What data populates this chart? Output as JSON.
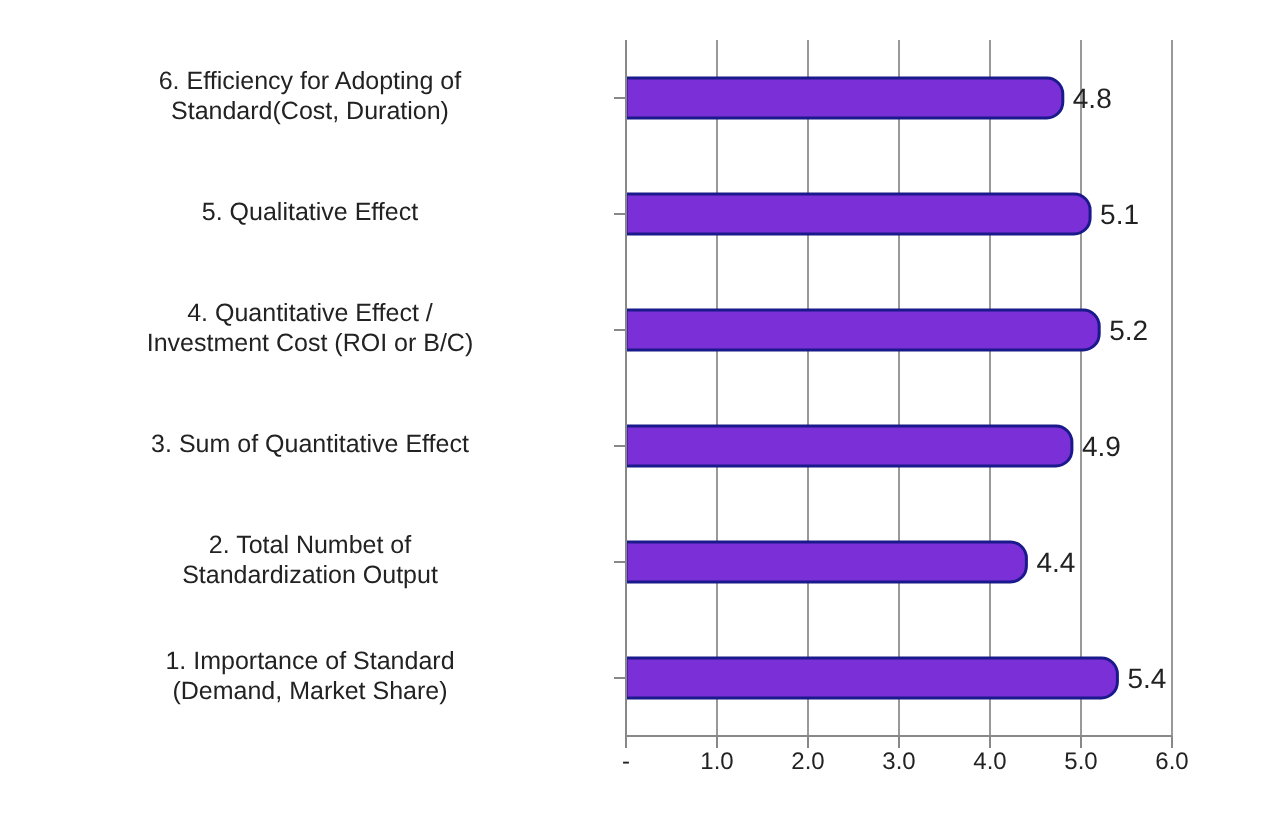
{
  "chart_data": {
    "type": "bar",
    "orientation": "horizontal",
    "categories": [
      "6. Efficiency for Adopting of Standard(Cost, Duration)",
      "5. Qualitative Effect",
      "4. Quantitative Effect / Investment Cost (ROI or B/C)",
      "3. Sum of Quantitative Effect",
      "2. Total Numbet of Standardization Output",
      "1. Importance of Standard (Demand, Market Share)"
    ],
    "values": [
      4.8,
      5.1,
      5.2,
      4.9,
      4.4,
      5.4
    ],
    "color": "#7b2fd6",
    "data_labels": true,
    "xlim": [
      0,
      6
    ],
    "xticks": [
      {
        "value": 0,
        "label": "-"
      },
      {
        "value": 1,
        "label": "1.0"
      },
      {
        "value": 2,
        "label": "2.0"
      },
      {
        "value": 3,
        "label": "3.0"
      },
      {
        "value": 4,
        "label": "4.0"
      },
      {
        "value": 5,
        "label": "5.0"
      },
      {
        "value": 6,
        "label": "6.0"
      }
    ],
    "grid": "x"
  }
}
